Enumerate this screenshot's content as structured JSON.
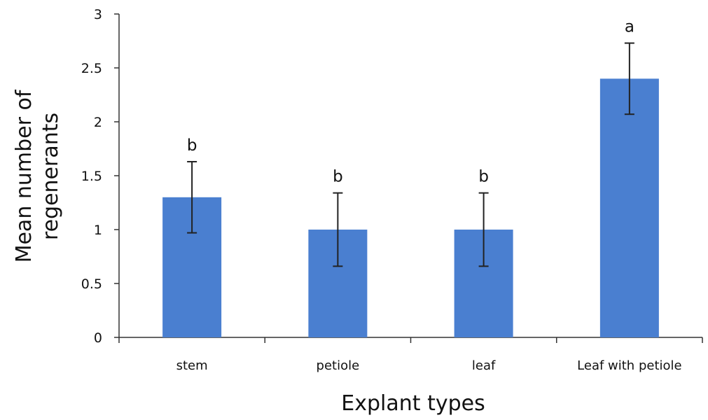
{
  "chart_data": {
    "type": "bar",
    "title": "",
    "xlabel": "Explant types",
    "ylabel_lines": [
      "Mean number of",
      "regenerants"
    ],
    "categories": [
      "stem",
      "petiole",
      "leaf",
      "Leaf with petiole"
    ],
    "values": [
      1.3,
      1.0,
      1.0,
      2.4
    ],
    "error": [
      0.33,
      0.34,
      0.34,
      0.33
    ],
    "significance_labels": [
      "b",
      "b",
      "b",
      "a"
    ],
    "ylim": [
      0,
      3
    ],
    "yticks": [
      "0",
      "0.5",
      "1",
      "1.5",
      "2",
      "2.5",
      "3"
    ],
    "grid": false,
    "legend": "none",
    "colors": {
      "bar": "#4a7fd0",
      "axis": "#333333",
      "error_bar": "#222222",
      "text": "#111111"
    }
  }
}
